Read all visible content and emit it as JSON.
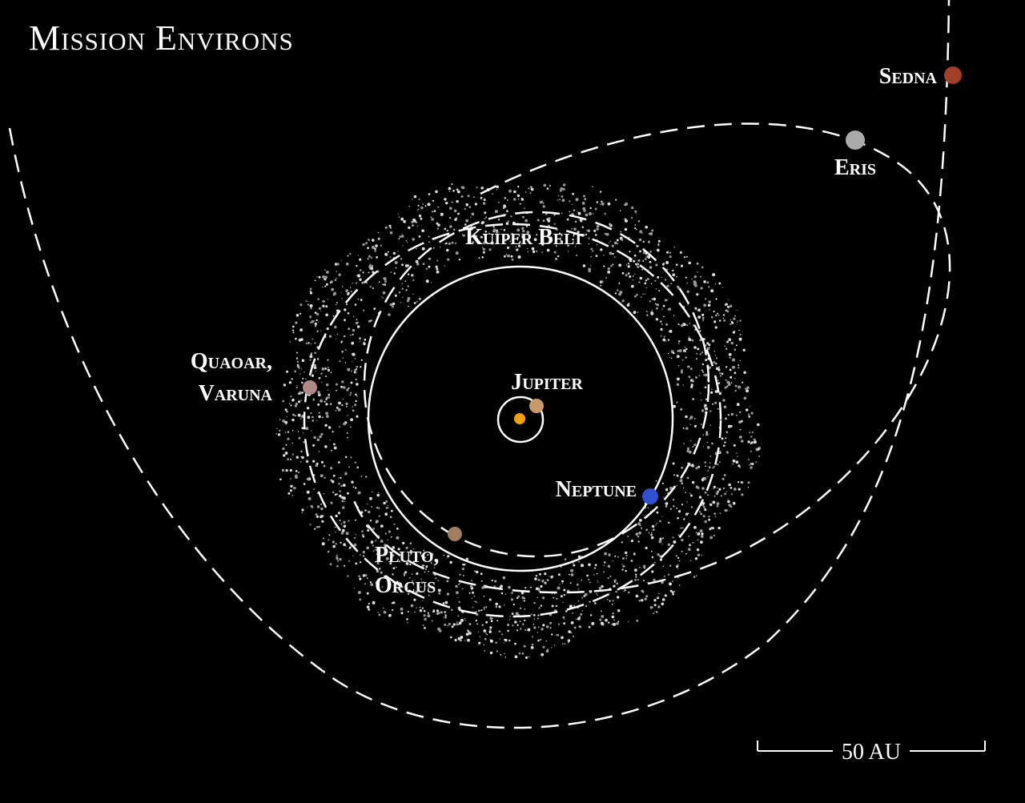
{
  "title": "Mission Environs",
  "labels": {
    "sedna": "Sedna",
    "eris": "Eris",
    "kuiper_belt": "Kuiper Belt",
    "quaoar_varuna": [
      "Quaoar,",
      "Varuna"
    ],
    "jupiter": "Jupiter",
    "neptune": "Neptune",
    "pluto_orcus": [
      "Pluto,",
      "Orcus"
    ]
  },
  "scale_bar": "50 AU"
}
